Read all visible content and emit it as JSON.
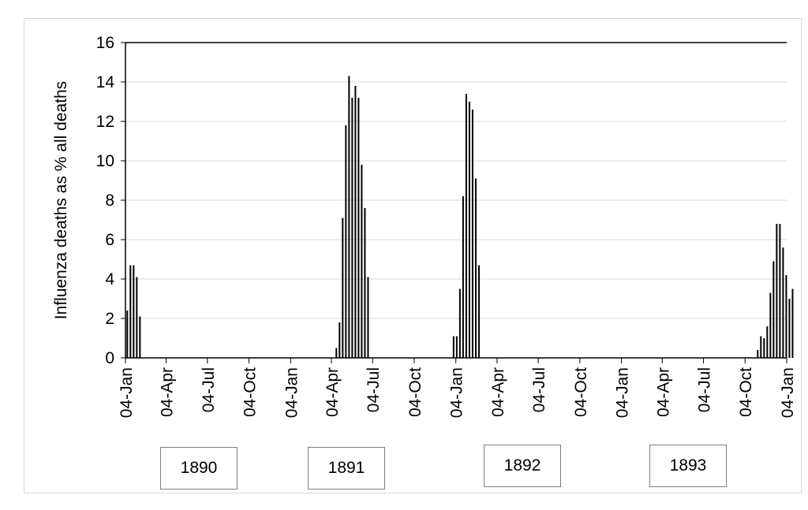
{
  "chart_data": {
    "type": "bar",
    "title": "",
    "xlabel": "",
    "ylabel": "Influenza deaths as % all deaths",
    "ylim": [
      0,
      16
    ],
    "yticks": [
      0,
      2,
      4,
      6,
      8,
      10,
      12,
      14,
      16
    ],
    "xlim": [
      "1890-01-04",
      "1894-01-04"
    ],
    "x_tick_labels": [
      {
        "date": "1890-01-04",
        "label": "04-Jan"
      },
      {
        "date": "1890-04-04",
        "label": "04-Apr"
      },
      {
        "date": "1890-07-04",
        "label": "04-Jul"
      },
      {
        "date": "1890-10-04",
        "label": "04-Oct"
      },
      {
        "date": "1891-01-04",
        "label": "04-Jan"
      },
      {
        "date": "1891-04-04",
        "label": "04-Apr"
      },
      {
        "date": "1891-07-04",
        "label": "04-Jul"
      },
      {
        "date": "1891-10-04",
        "label": "04-Oct"
      },
      {
        "date": "1892-01-04",
        "label": "04-Jan"
      },
      {
        "date": "1892-04-04",
        "label": "04-Apr"
      },
      {
        "date": "1892-07-04",
        "label": "04-Jul"
      },
      {
        "date": "1892-10-04",
        "label": "04-Oct"
      },
      {
        "date": "1893-01-04",
        "label": "04-Jan"
      },
      {
        "date": "1893-04-04",
        "label": "04-Apr"
      },
      {
        "date": "1893-07-04",
        "label": "04-Jul"
      },
      {
        "date": "1893-10-04",
        "label": "04-Oct"
      },
      {
        "date": "1894-01-04",
        "label": "04-Jan"
      }
    ],
    "grid": "horizontal",
    "legend": "none",
    "bar_color": "#000000",
    "points": [
      {
        "x": "1890-01-08",
        "y": 2.4
      },
      {
        "x": "1890-01-15",
        "y": 4.7
      },
      {
        "x": "1890-01-22",
        "y": 4.7
      },
      {
        "x": "1890-01-29",
        "y": 4.1
      },
      {
        "x": "1890-02-05",
        "y": 2.1
      },
      {
        "x": "1891-04-15",
        "y": 0.5
      },
      {
        "x": "1891-04-22",
        "y": 1.8
      },
      {
        "x": "1891-04-29",
        "y": 7.1
      },
      {
        "x": "1891-05-06",
        "y": 11.8
      },
      {
        "x": "1891-05-13",
        "y": 14.3
      },
      {
        "x": "1891-05-20",
        "y": 13.2
      },
      {
        "x": "1891-05-27",
        "y": 13.8
      },
      {
        "x": "1891-06-03",
        "y": 13.2
      },
      {
        "x": "1891-06-10",
        "y": 9.8
      },
      {
        "x": "1891-06-17",
        "y": 7.6
      },
      {
        "x": "1891-06-24",
        "y": 4.1
      },
      {
        "x": "1891-12-30",
        "y": 1.1
      },
      {
        "x": "1892-01-06",
        "y": 1.1
      },
      {
        "x": "1892-01-13",
        "y": 3.5
      },
      {
        "x": "1892-01-20",
        "y": 8.2
      },
      {
        "x": "1892-01-27",
        "y": 13.4
      },
      {
        "x": "1892-02-03",
        "y": 13.0
      },
      {
        "x": "1892-02-10",
        "y": 12.6
      },
      {
        "x": "1892-02-17",
        "y": 9.1
      },
      {
        "x": "1892-02-24",
        "y": 4.7
      },
      {
        "x": "1893-11-01",
        "y": 0.4
      },
      {
        "x": "1893-11-08",
        "y": 1.1
      },
      {
        "x": "1893-11-15",
        "y": 1.0
      },
      {
        "x": "1893-11-22",
        "y": 1.6
      },
      {
        "x": "1893-11-29",
        "y": 3.3
      },
      {
        "x": "1893-12-06",
        "y": 4.9
      },
      {
        "x": "1893-12-13",
        "y": 6.8
      },
      {
        "x": "1893-12-20",
        "y": 6.8
      },
      {
        "x": "1893-12-27",
        "y": 5.6
      },
      {
        "x": "1894-01-03",
        "y": 4.2
      },
      {
        "x": "1894-01-10",
        "y": 3.0
      },
      {
        "x": "1894-01-17",
        "y": 3.5
      }
    ],
    "annotations": [
      "1890",
      "1891",
      "1892",
      "1893"
    ]
  }
}
